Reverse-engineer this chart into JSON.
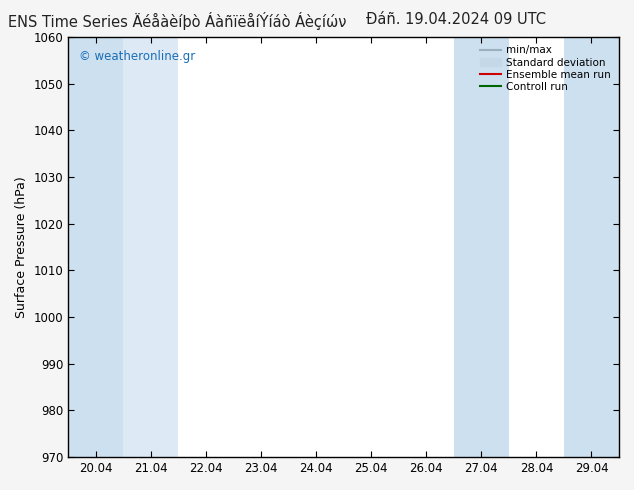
{
  "title_left": "ENS Time Series Äéåàèíþò ÁàñïëåíÝíáò Áèçíών",
  "title_right": "Ðáñ. 19.04.2024 09 UTC",
  "ylabel": "Surface Pressure (hPa)",
  "ylim": [
    970,
    1060
  ],
  "yticks": [
    970,
    980,
    990,
    1000,
    1010,
    1020,
    1030,
    1040,
    1050,
    1060
  ],
  "xtick_labels": [
    "20.04",
    "21.04",
    "22.04",
    "23.04",
    "24.04",
    "25.04",
    "26.04",
    "27.04",
    "28.04",
    "29.04"
  ],
  "xtick_positions": [
    0,
    1,
    2,
    3,
    4,
    5,
    6,
    7,
    8,
    9
  ],
  "xlim": [
    -0.5,
    9.5
  ],
  "shaded_bands": [
    {
      "x_start": -0.5,
      "x_end": 0.5,
      "color": "#cde0f0"
    },
    {
      "x_start": 0.5,
      "x_end": 1.5,
      "color": "#ddeaf6"
    },
    {
      "x_start": 6.5,
      "x_end": 7.5,
      "color": "#cde0f0"
    },
    {
      "x_start": 8.5,
      "x_end": 9.5,
      "color": "#cde0f0"
    }
  ],
  "legend_entries": [
    {
      "label": "min/max",
      "color": "#9ab0c0",
      "linewidth": 1.5,
      "linestyle": "-",
      "type": "line"
    },
    {
      "label": "Standard deviation",
      "color": "#c5d8e8",
      "linewidth": 8,
      "linestyle": "-",
      "type": "patch"
    },
    {
      "label": "Ensemble mean run",
      "color": "#cc0000",
      "linewidth": 1.5,
      "linestyle": "-",
      "type": "line"
    },
    {
      "label": "Controll run",
      "color": "#006600",
      "linewidth": 1.5,
      "linestyle": "-",
      "type": "line"
    }
  ],
  "watermark": "© weatheronline.gr",
  "watermark_color": "#1a6eb5",
  "background_color": "#f5f5f5",
  "plot_bg_color": "#ffffff",
  "title_fontsize": 10.5,
  "tick_fontsize": 8.5,
  "ylabel_fontsize": 9
}
